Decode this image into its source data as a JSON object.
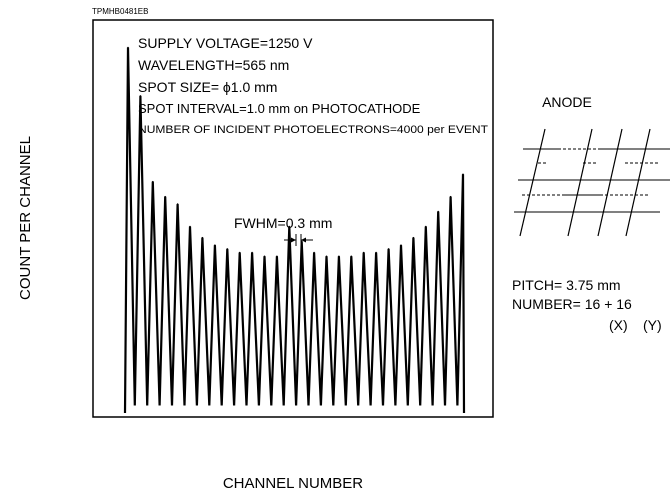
{
  "figure_code": "TPMHB0481EB",
  "chart_data": {
    "type": "line",
    "xlabel": "CHANNEL NUMBER",
    "ylabel": "COUNT PER CHANNEL",
    "grid": false,
    "peak_count": 28,
    "peak_heights": [
      0.98,
      0.85,
      0.62,
      0.58,
      0.56,
      0.5,
      0.47,
      0.45,
      0.44,
      0.43,
      0.43,
      0.42,
      0.42,
      0.5,
      0.46,
      0.43,
      0.42,
      0.42,
      0.42,
      0.43,
      0.43,
      0.44,
      0.45,
      0.47,
      0.5,
      0.54,
      0.58,
      0.64
    ],
    "valley_height": 0.02,
    "annotations": [
      "SUPPLY VOLTAGE=1250 V",
      "WAVELENGTH=565 nm",
      "SPOT SIZE= ϕ1.0 mm",
      "SPOT INTERVAL=1.0 mm on PHOTOCATHODE",
      "NUMBER OF INCIDENT PHOTOELECTRONS=4000 per EVENT"
    ],
    "fwhm_label": "FWHM=0.3 mm"
  },
  "anode": {
    "title": "ANODE",
    "pitch": "PITCH= 3.75 mm",
    "number": "NUMBER= 16 + 16",
    "x_label": "(X)",
    "y_label": "(Y)"
  },
  "colors": {
    "line": "#000000",
    "background": "#ffffff"
  }
}
